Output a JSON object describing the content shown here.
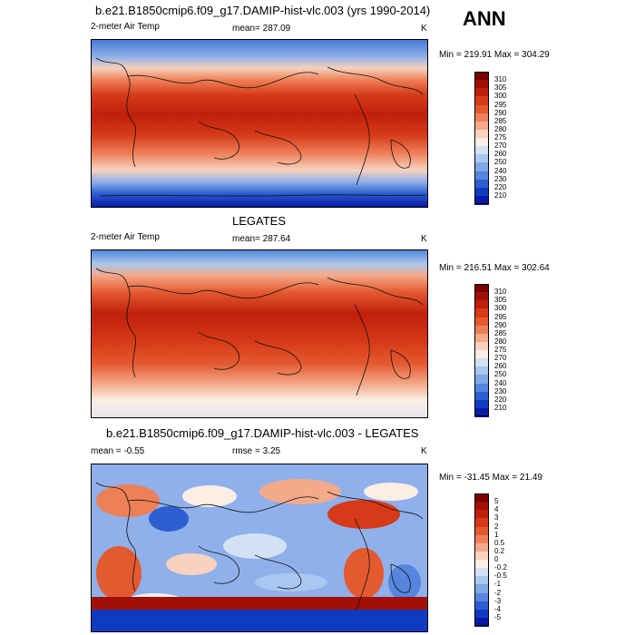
{
  "season": "ANN",
  "panels": [
    {
      "title": "b.e21.B1850cmip6.f09_g17.DAMIP-hist-vlc.003 (yrs 1990-2014)",
      "left_label": "2-meter Air Temp",
      "center_label": "mean= 287.09",
      "right_label": "K",
      "minmax": "Min = 219.91 Max = 304.29",
      "colorbar": {
        "ticks": [
          "310",
          "305",
          "300",
          "295",
          "290",
          "285",
          "280",
          "275",
          "270",
          "260",
          "250",
          "240",
          "230",
          "220",
          "210"
        ],
        "colors": [
          "#7a0000",
          "#a01008",
          "#c01f0c",
          "#d63a18",
          "#e45a30",
          "#ee8058",
          "#f4a98a",
          "#f8d2bf",
          "#fbeee4",
          "#d2e2f4",
          "#a9c7ee",
          "#7ea8e6",
          "#5585dc",
          "#2d5fd1",
          "#0f3bc0",
          "#0a1aa8"
        ]
      }
    },
    {
      "title": "LEGATES",
      "left_label": "2-meter Air Temp",
      "center_label": "mean= 287.64",
      "right_label": "K",
      "minmax": "Min = 216.51 Max = 302.64",
      "colorbar": {
        "ticks": [
          "310",
          "305",
          "300",
          "295",
          "290",
          "285",
          "280",
          "275",
          "270",
          "260",
          "250",
          "240",
          "230",
          "220",
          "210"
        ],
        "colors": [
          "#7a0000",
          "#a01008",
          "#c01f0c",
          "#d63a18",
          "#e45a30",
          "#ee8058",
          "#f4a98a",
          "#f8d2bf",
          "#fbeee4",
          "#d2e2f4",
          "#a9c7ee",
          "#7ea8e6",
          "#5585dc",
          "#2d5fd1",
          "#0f3bc0",
          "#0a1aa8"
        ]
      }
    },
    {
      "title": "b.e21.B1850cmip6.f09_g17.DAMIP-hist-vlc.003 - LEGATES",
      "left_label": "mean =  -0.55",
      "center_label": "rmse =   3.25",
      "right_label": "K",
      "minmax": "Min = -31.45 Max =  21.49",
      "colorbar": {
        "ticks": [
          "5",
          "4",
          "3",
          "2",
          "1",
          "0.5",
          "0.2",
          "0",
          "-0.2",
          "-0.5",
          "-1",
          "-2",
          "-3",
          "-4",
          "-5"
        ],
        "colors": [
          "#7a0000",
          "#a01008",
          "#c01f0c",
          "#d63a18",
          "#e45a30",
          "#ee8058",
          "#f4a98a",
          "#f8d2bf",
          "#fbeee4",
          "#d2e2f4",
          "#a9c7ee",
          "#7ea8e6",
          "#5585dc",
          "#2d5fd1",
          "#0f3bc0",
          "#0a1aa8"
        ]
      }
    }
  ],
  "chart_data": [
    {
      "type": "heatmap",
      "title": "b.e21.B1850cmip6.f09_g17.DAMIP-hist-vlc.003 (yrs 1990-2014)",
      "variable": "2-meter Air Temp",
      "units": "K",
      "mean": 287.09,
      "min": 219.91,
      "max": 304.29,
      "contour_levels": [
        210,
        220,
        230,
        240,
        250,
        260,
        270,
        275,
        280,
        285,
        290,
        295,
        300,
        305,
        310
      ]
    },
    {
      "type": "heatmap",
      "title": "LEGATES",
      "variable": "2-meter Air Temp",
      "units": "K",
      "mean": 287.64,
      "min": 216.51,
      "max": 302.64,
      "contour_levels": [
        210,
        220,
        230,
        240,
        250,
        260,
        270,
        275,
        280,
        285,
        290,
        295,
        300,
        305,
        310
      ]
    },
    {
      "type": "heatmap",
      "title": "b.e21.B1850cmip6.f09_g17.DAMIP-hist-vlc.003 - LEGATES",
      "units": "K",
      "mean": -0.55,
      "rmse": 3.25,
      "min": -31.45,
      "max": 21.49,
      "contour_levels": [
        -5,
        -4,
        -3,
        -2,
        -1,
        -0.5,
        -0.2,
        0,
        0.2,
        0.5,
        1,
        2,
        3,
        4,
        5
      ]
    }
  ]
}
